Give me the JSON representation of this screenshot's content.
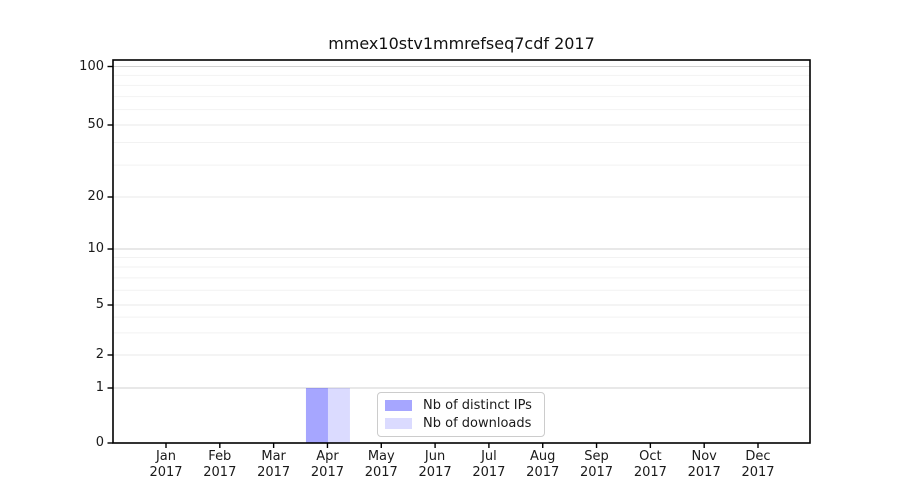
{
  "chart_data": {
    "type": "bar",
    "title": "mmex10stv1mmrefseq7cdf 2017",
    "categories": [
      "Jan",
      "Feb",
      "Mar",
      "Apr",
      "May",
      "Jun",
      "Jul",
      "Aug",
      "Sep",
      "Oct",
      "Nov",
      "Dec"
    ],
    "year_label": "2017",
    "series": [
      {
        "name": "Nb of distinct IPs",
        "color": "#0000FF59",
        "values": [
          0,
          0,
          0,
          1,
          0,
          0,
          0,
          0,
          0,
          0,
          0,
          0
        ]
      },
      {
        "name": "Nb of downloads",
        "color": "#0000FF24",
        "values": [
          0,
          0,
          0,
          1,
          0,
          0,
          0,
          0,
          0,
          0,
          0,
          0
        ]
      }
    ],
    "yscale": "symlog",
    "yticks": [
      0,
      1,
      2,
      5,
      10,
      20,
      50,
      100
    ],
    "y_minor_gridlines": [
      3,
      4,
      6,
      7,
      8,
      9,
      30,
      40,
      60,
      70,
      80,
      90
    ],
    "y_mid_gridlines": [
      2,
      5,
      20,
      50
    ],
    "y_major_gridlines": [
      1,
      10,
      100
    ],
    "ylim": [
      0,
      110
    ],
    "grid": "both",
    "legend_position": "lower center",
    "colors": {
      "major_grid": "#d2d2d2",
      "mid_grid": "#e9e9e9",
      "minor_grid": "#f2f2f2",
      "spine": "#000000",
      "text": "#1a1a1a"
    }
  }
}
